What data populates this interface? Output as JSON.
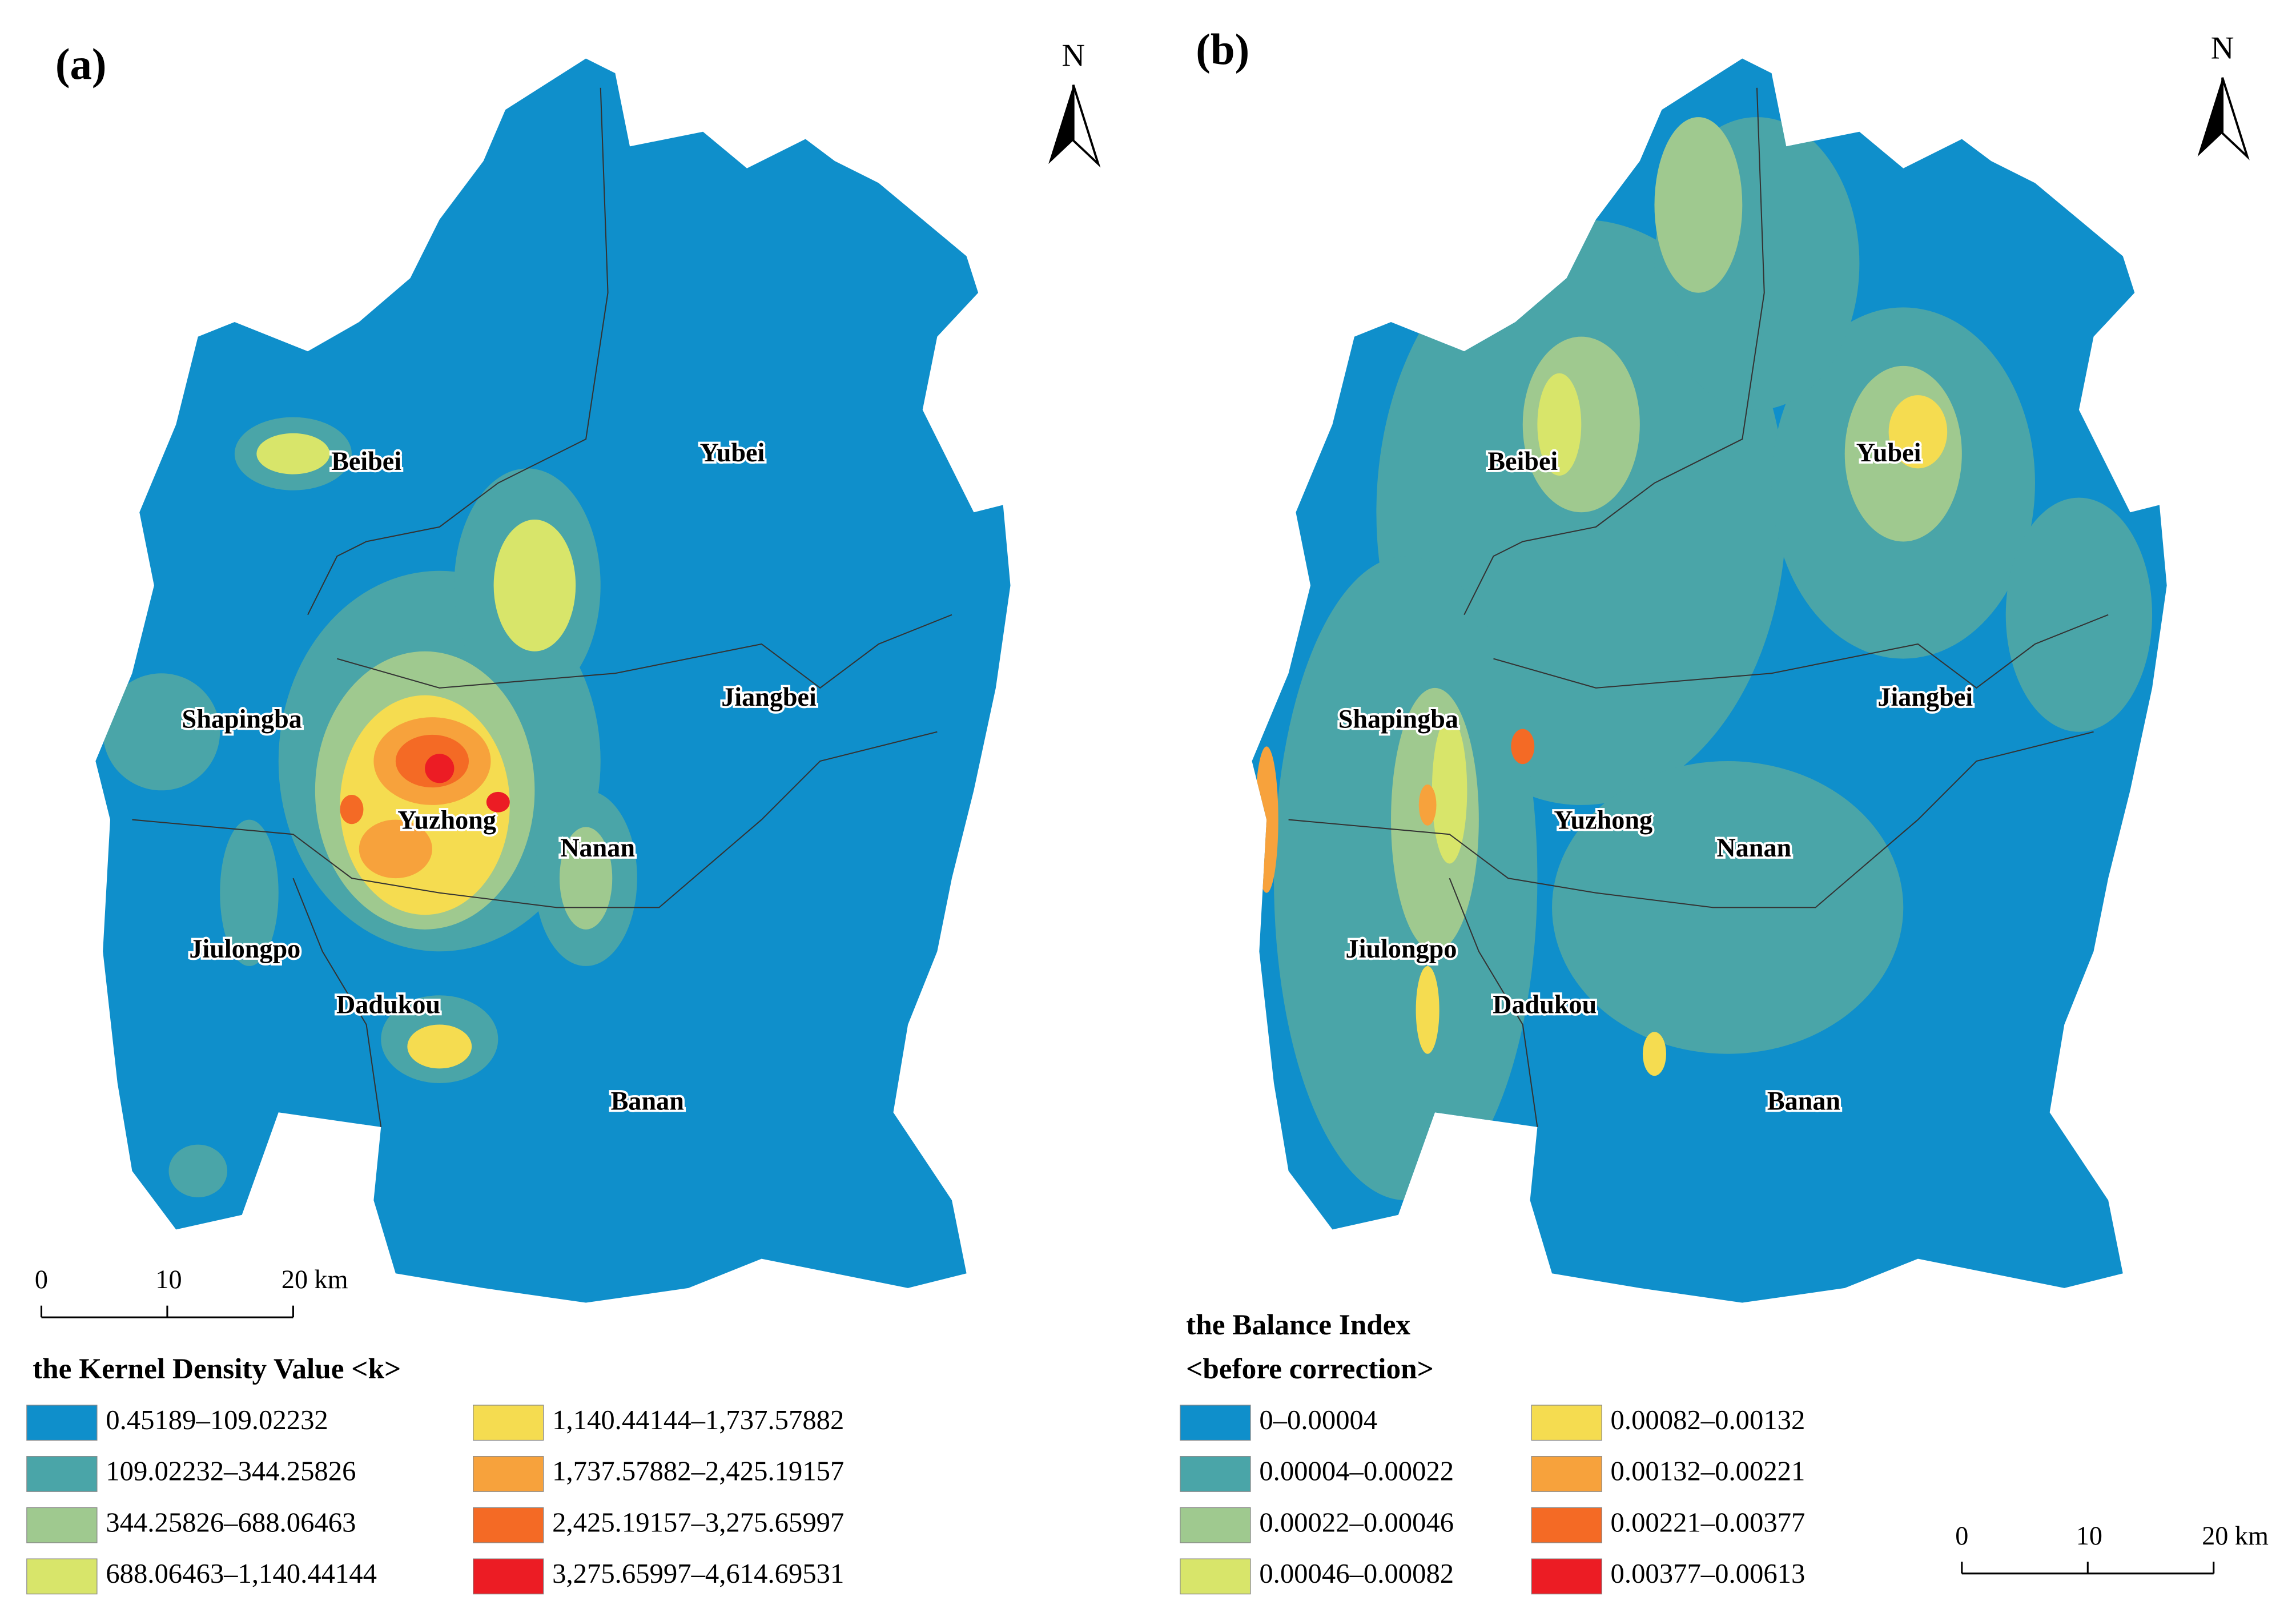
{
  "panels": [
    {
      "label": "(a)",
      "north": "N",
      "districts": [
        "Beibei",
        "Yubei",
        "Shapingba",
        "Jiangbei",
        "Yuzhong",
        "Nanan",
        "Jiulongpo",
        "Dadukou",
        "Banan"
      ],
      "scale_bar": [
        "0",
        "10",
        "20 km"
      ],
      "legend": {
        "title": [
          "the Kernel Density Value <k>"
        ],
        "items": [
          {
            "label": "0.45189–109.02232",
            "color": "#0f8fcb"
          },
          {
            "label": "109.02232–344.25826",
            "color": "#4aa5a8"
          },
          {
            "label": "344.25826–688.06463",
            "color": "#9fc98f"
          },
          {
            "label": "688.06463–1,140.44144",
            "color": "#d8e56a"
          },
          {
            "label": "1,140.44144–1,737.57882",
            "color": "#f5dc50"
          },
          {
            "label": "1,737.57882–2,425.19157",
            "color": "#f7a23c"
          },
          {
            "label": "2,425.19157–3,275.65997",
            "color": "#f46a25"
          },
          {
            "label": "3,275.65997–4,614.69531",
            "color": "#ec1c24"
          }
        ]
      }
    },
    {
      "label": "(b)",
      "north": "N",
      "districts": [
        "Beibei",
        "Yubei",
        "Shapingba",
        "Jiangbei",
        "Yuzhong",
        "Nanan",
        "Jiulongpo",
        "Dadukou",
        "Banan"
      ],
      "scale_bar": [
        "0",
        "10",
        "20 km"
      ],
      "legend": {
        "title": [
          "the Balance Index",
          "<before correction>"
        ],
        "items": [
          {
            "label": "0–0.00004",
            "color": "#0f8fcb"
          },
          {
            "label": "0.00004–0.00022",
            "color": "#4aa5a8"
          },
          {
            "label": "0.00022–0.00046",
            "color": "#9fc98f"
          },
          {
            "label": "0.00046–0.00082",
            "color": "#d8e56a"
          },
          {
            "label": "0.00082–0.00132",
            "color": "#f5dc50"
          },
          {
            "label": "0.00132–0.00221",
            "color": "#f7a23c"
          },
          {
            "label": "0.00221–0.00377",
            "color": "#f46a25"
          },
          {
            "label": "0.00377–0.00613",
            "color": "#ec1c24"
          }
        ]
      }
    }
  ]
}
